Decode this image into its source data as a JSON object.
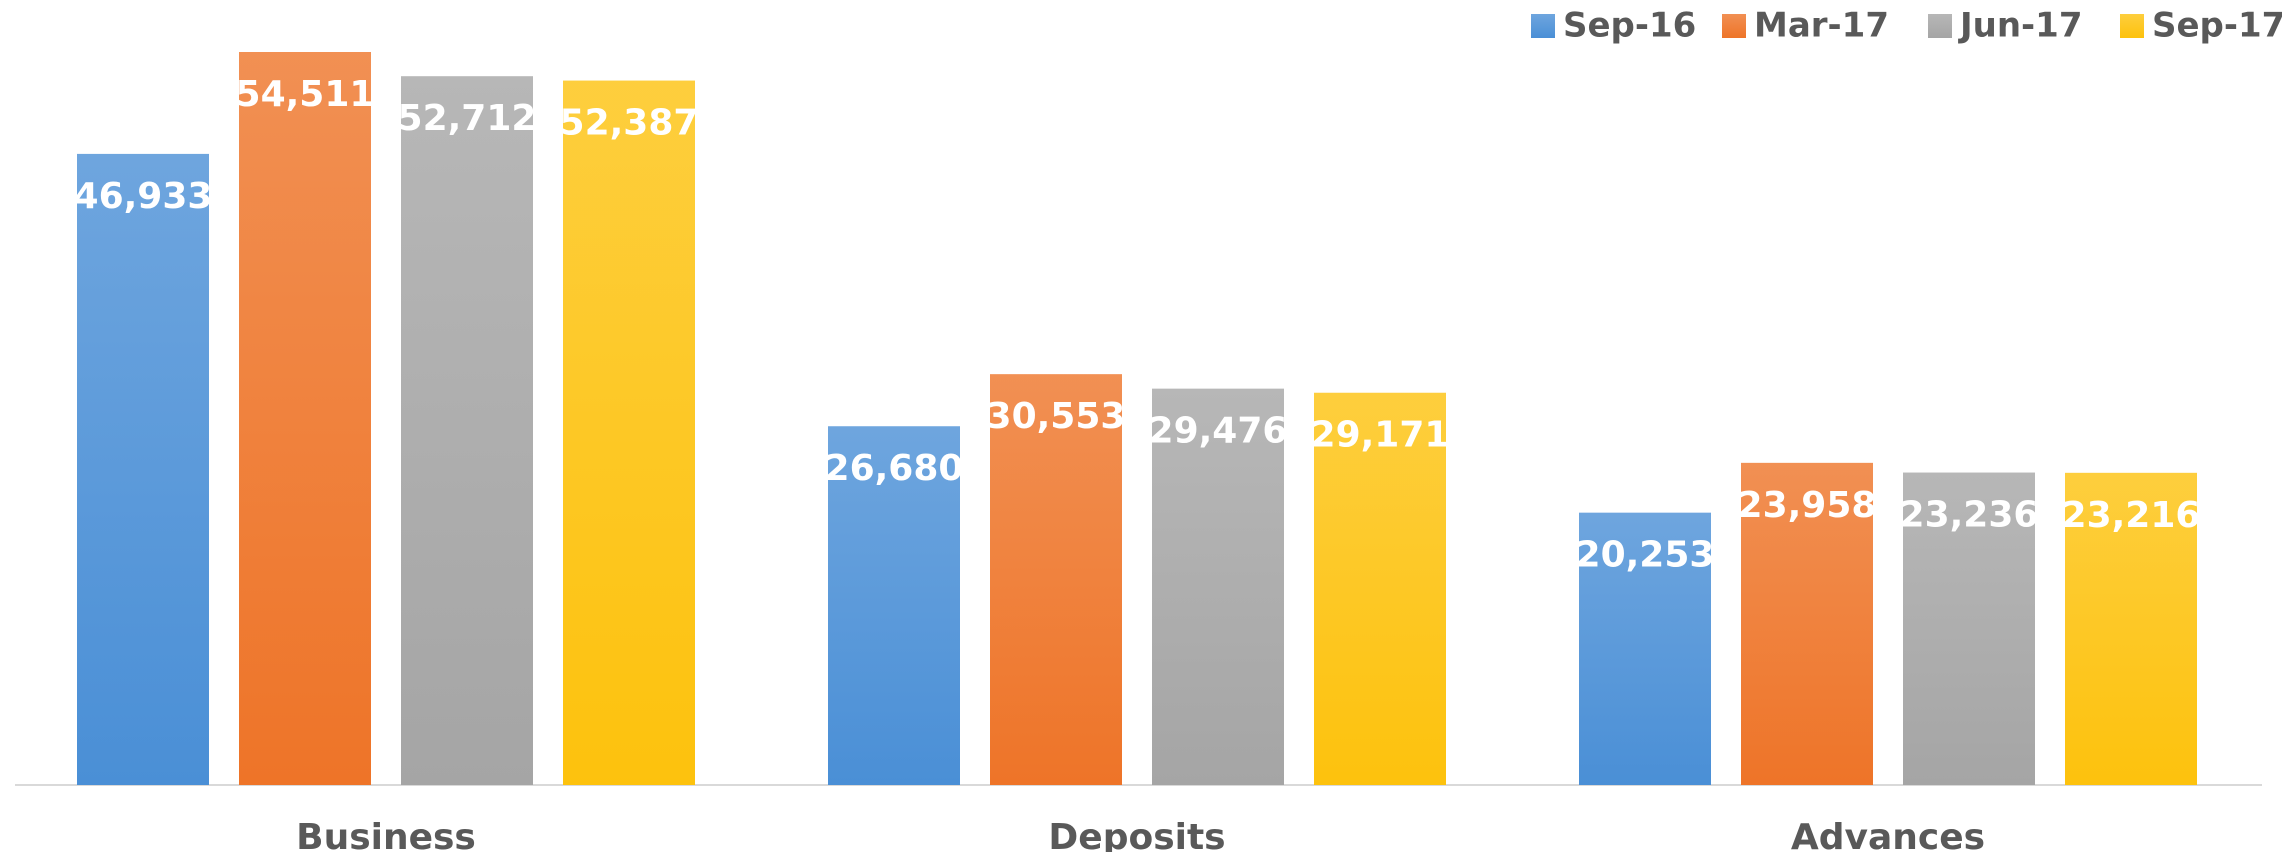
{
  "chart_data": {
    "type": "bar",
    "categories": [
      "Business",
      "Deposits",
      "Advances"
    ],
    "series": [
      {
        "name": "Sep-16",
        "color": "#4a8fd6",
        "values": [
          46933,
          26680,
          20253
        ],
        "value_labels": [
          "46,933",
          "26,680",
          "20,253"
        ]
      },
      {
        "name": "Mar-17",
        "color": "#ee7428",
        "values": [
          54511,
          30553,
          23958
        ],
        "value_labels": [
          "54,511",
          "30,553",
          "23,958"
        ]
      },
      {
        "name": "Jun-17",
        "color": "#a5a5a5",
        "values": [
          52712,
          29476,
          23236
        ],
        "value_labels": [
          "52,712",
          "29,476",
          "23,236"
        ]
      },
      {
        "name": "Sep-17",
        "color": "#fdc20d",
        "values": [
          52387,
          29171,
          23216
        ],
        "value_labels": [
          "52,387",
          "29,171",
          "23,216"
        ]
      }
    ],
    "legend": "top-right"
  }
}
